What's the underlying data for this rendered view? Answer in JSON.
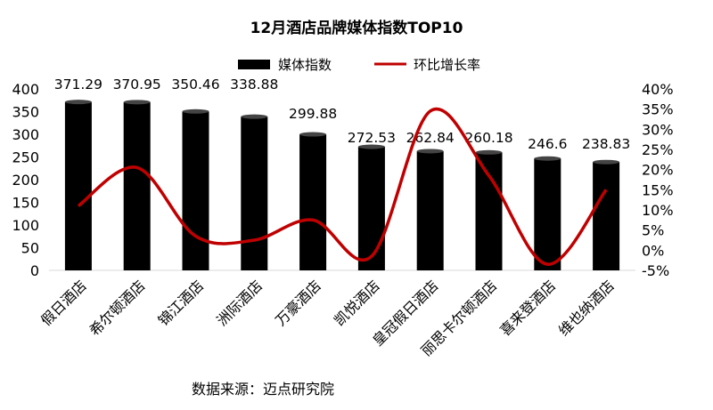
{
  "chart_data": {
    "type": "bar",
    "title": "12月酒店品牌媒体指数TOP10",
    "categories": [
      "假日酒店",
      "希尔顿酒店",
      "锦江酒店",
      "洲际酒店",
      "万豪酒店",
      "凯悦酒店",
      "皇冠假日酒店",
      "丽思卡尔顿酒店",
      "喜来登酒店",
      "维也纳酒店"
    ],
    "series": [
      {
        "name": "媒体指数",
        "type": "bar",
        "axis": "left",
        "color": "#000000",
        "values": [
          371.29,
          370.95,
          350.46,
          338.88,
          299.88,
          272.53,
          262.84,
          260.18,
          246.6,
          238.83
        ],
        "labels": [
          "371.29",
          "370.95",
          "350.46",
          "338.88",
          "299.88",
          "272.53",
          "262.84",
          "260.18",
          "246.6",
          "238.83"
        ]
      },
      {
        "name": "环比增长率",
        "type": "line",
        "axis": "right",
        "color": "#c00000",
        "values": [
          11,
          20.5,
          3.5,
          2.5,
          7.5,
          -1.5,
          34.5,
          18.5,
          -3.5,
          15
        ]
      }
    ],
    "y_left": {
      "min": 0,
      "max": 400,
      "ticks": [
        "0",
        "50",
        "100",
        "150",
        "200",
        "250",
        "300",
        "350",
        "400"
      ]
    },
    "y_right": {
      "min": -5,
      "max": 40,
      "ticks": [
        "-5%",
        "0%",
        "5%",
        "10%",
        "15%",
        "20%",
        "25%",
        "30%",
        "35%",
        "40%"
      ]
    },
    "legend_position": "top-center",
    "grid": false,
    "source": "数据来源：迈点研究院"
  }
}
